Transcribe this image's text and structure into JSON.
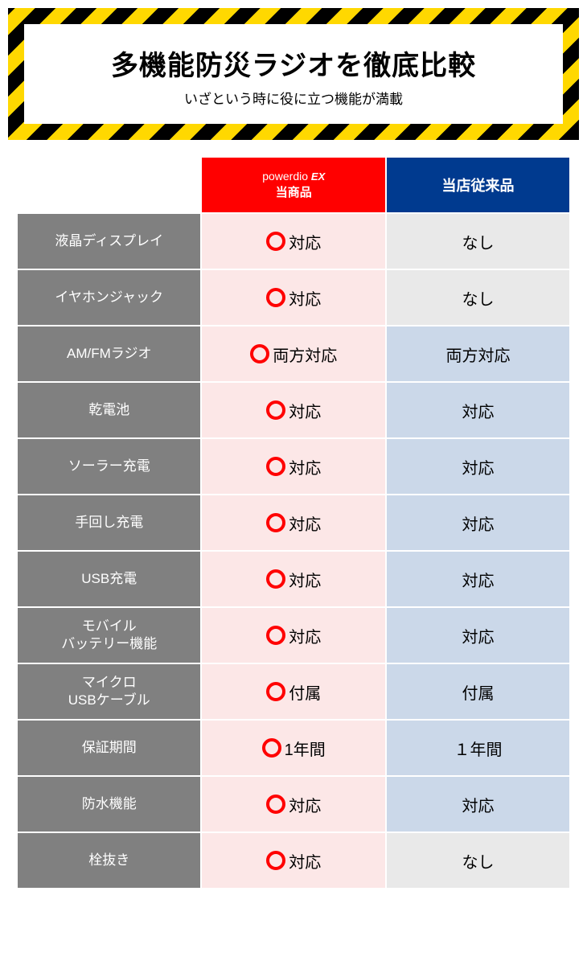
{
  "banner": {
    "title": "多機能防災ラジオを徹底比較",
    "subtitle": "いざという時に役に立つ機能が満載"
  },
  "table": {
    "headers": {
      "product_brand": "powerdio",
      "product_brand_suffix": "EX",
      "product_label": "当商品",
      "other_label": "当店従来品"
    },
    "rows": [
      {
        "feature": "液晶ディスプレイ",
        "product": "対応",
        "other": "なし",
        "other_style": "gray"
      },
      {
        "feature": "イヤホンジャック",
        "product": "対応",
        "other": "なし",
        "other_style": "gray"
      },
      {
        "feature": "AM/FMラジオ",
        "product": "両方対応",
        "other": "両方対応",
        "other_style": "blue"
      },
      {
        "feature": "乾電池",
        "product": "対応",
        "other": "対応",
        "other_style": "blue"
      },
      {
        "feature": "ソーラー充電",
        "product": "対応",
        "other": "対応",
        "other_style": "blue"
      },
      {
        "feature": "手回し充電",
        "product": "対応",
        "other": "対応",
        "other_style": "blue"
      },
      {
        "feature": "USB充電",
        "product": "対応",
        "other": "対応",
        "other_style": "blue"
      },
      {
        "feature": "モバイル\nバッテリー機能",
        "product": "対応",
        "other": "対応",
        "other_style": "blue"
      },
      {
        "feature": "マイクロ\nUSBケーブル",
        "product": "付属",
        "other": "付属",
        "other_style": "blue"
      },
      {
        "feature": "保証期間",
        "product": "1年間",
        "other": "１年間",
        "other_style": "blue"
      },
      {
        "feature": "防水機能",
        "product": "対応",
        "other": "対応",
        "other_style": "blue"
      },
      {
        "feature": "栓抜き",
        "product": "対応",
        "other": "なし",
        "other_style": "gray"
      }
    ]
  },
  "colors": {
    "hazard_yellow": "#ffd800",
    "hazard_black": "#000000",
    "product_red": "#ff0000",
    "other_navy": "#003a8f",
    "feature_gray": "#808080",
    "product_cell_bg": "#fce7e7",
    "other_gray_bg": "#e9e9e9",
    "other_blue_bg": "#cbd8e9"
  }
}
